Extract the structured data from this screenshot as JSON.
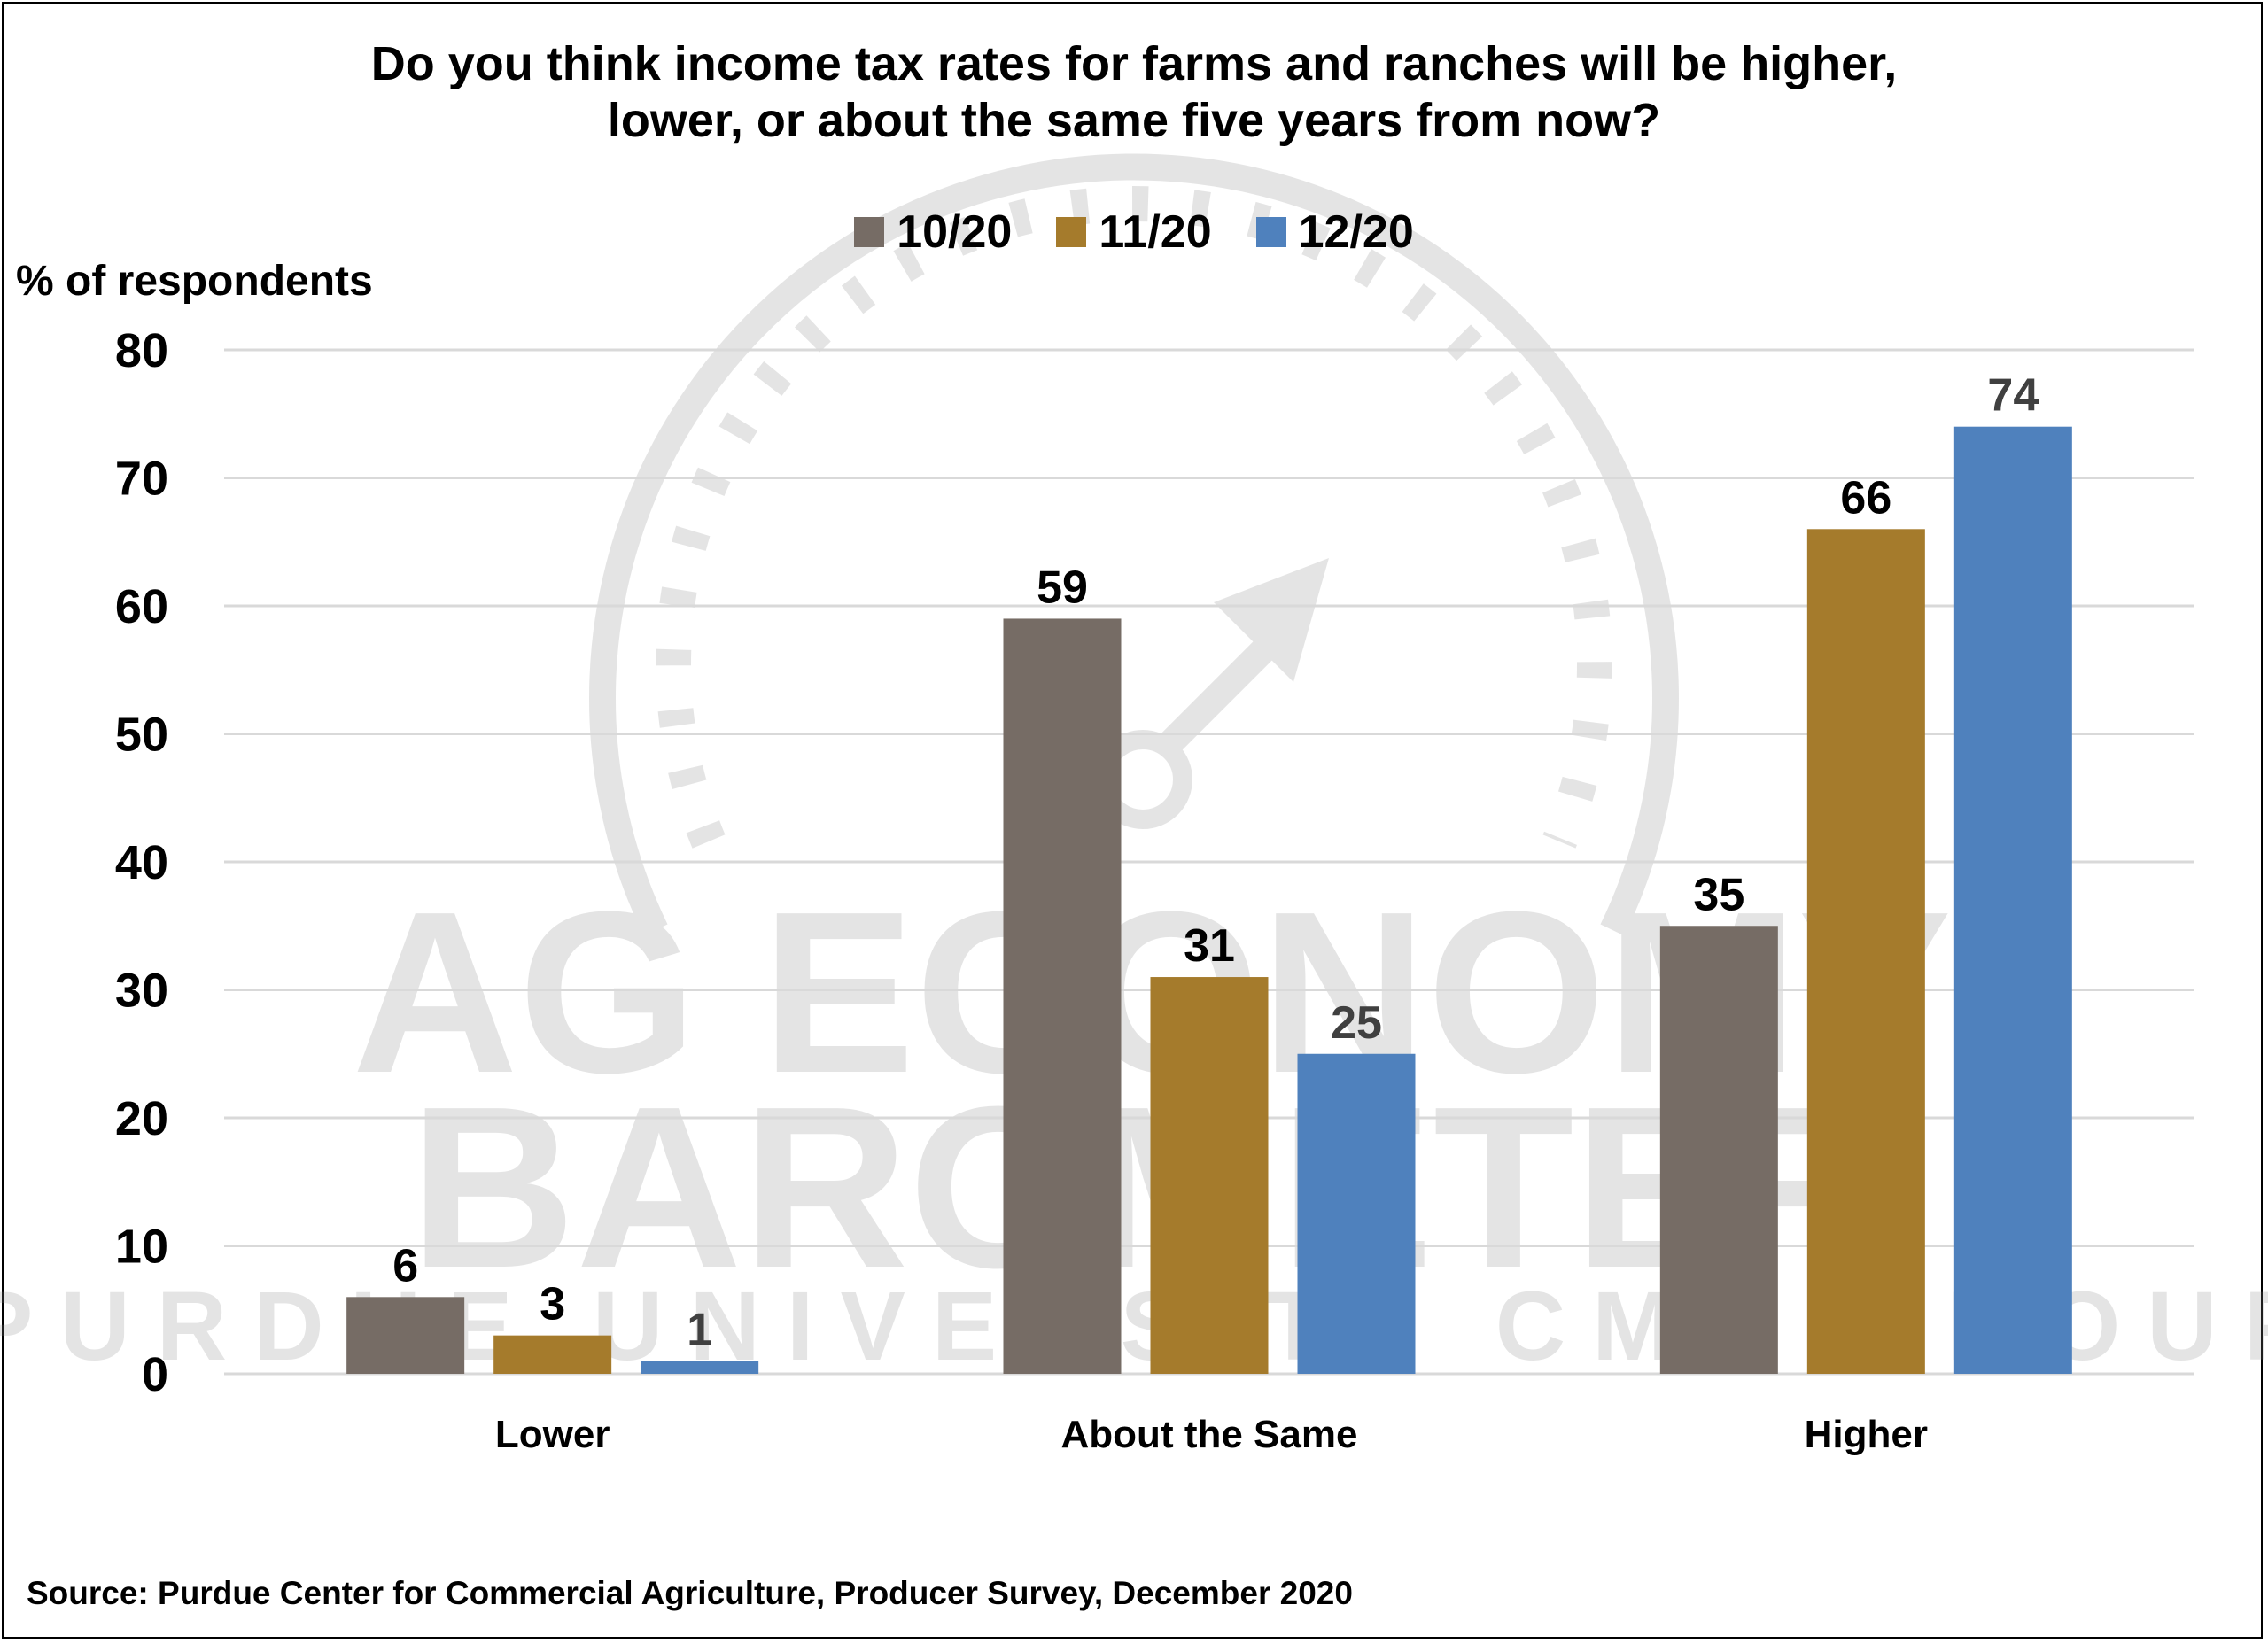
{
  "chart_data": {
    "type": "bar",
    "title": "Do you think income tax rates for farms and ranches will be higher, lower, or about the same five years from now?",
    "title_lines": [
      "Do you think income tax rates for farms and ranches will be higher,",
      "lower, or about the same five years from now?"
    ],
    "ylabel": "% of respondents",
    "xlabel": "",
    "ylim": [
      0,
      80
    ],
    "yticks": [
      0,
      10,
      20,
      30,
      40,
      50,
      60,
      70,
      80
    ],
    "grid": true,
    "legend_position": "top",
    "categories": [
      "Lower",
      "About the Same",
      "Higher"
    ],
    "series": [
      {
        "name": "10/20",
        "color": "#766c65",
        "label_color": "#000000",
        "values": [
          6,
          59,
          35
        ]
      },
      {
        "name": "11/20",
        "color": "#a57b2c",
        "label_color": "#000000",
        "values": [
          3,
          31,
          66
        ]
      },
      {
        "name": "12/20",
        "color": "#4f81bd",
        "label_color": "#404040",
        "values": [
          1,
          25,
          74
        ]
      }
    ],
    "source": "Source: Purdue Center for Commercial Agriculture, Producer Survey, December 2020"
  },
  "watermark": {
    "lines": [
      "AG ECONOMY",
      "BAROMETER",
      "PURDUE UNIVERSITY CME GROUP"
    ]
  }
}
